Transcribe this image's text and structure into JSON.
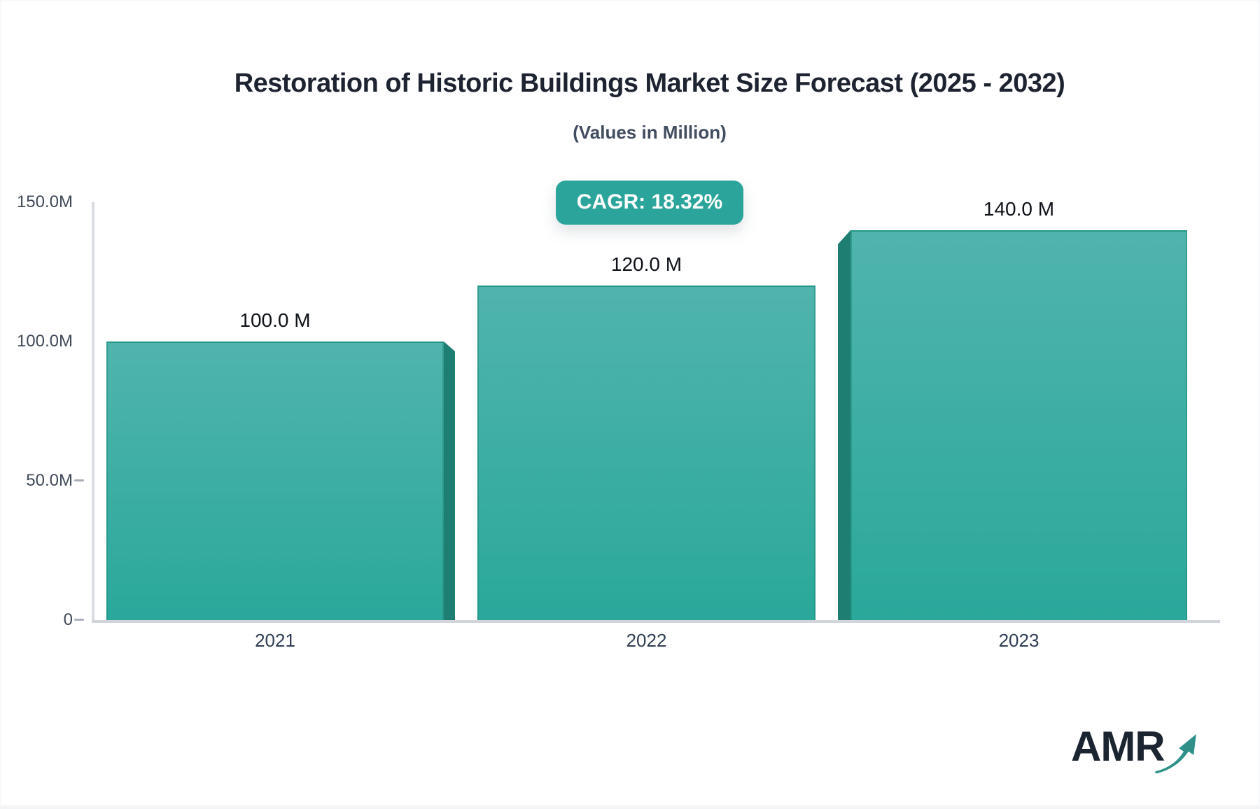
{
  "header": {
    "title": "Restoration of Historic Buildings Market Size Forecast (2025 - 2032)",
    "subtitle": "(Values in Million)"
  },
  "badge": {
    "label": "CAGR: 18.32%"
  },
  "chart_data": {
    "type": "bar",
    "title": "Restoration of Historic Buildings Market Size Forecast (2025 - 2032)",
    "subtitle": "(Values in Million)",
    "cagr_percent": 18.32,
    "categories": [
      "2021",
      "2022",
      "2023"
    ],
    "values": [
      100.0,
      120.0,
      140.0
    ],
    "value_labels": [
      "100.0 M",
      "120.0 M",
      "140.0 M"
    ],
    "unit": "Million",
    "ylim": [
      0,
      150
    ],
    "yticks": [
      {
        "value": 150,
        "label": "150.0M",
        "dash": false
      },
      {
        "value": 100,
        "label": "100.0M",
        "dash": false
      },
      {
        "value": 50,
        "label": "50.0M",
        "dash": true
      },
      {
        "value": 0,
        "label": "0",
        "dash": true
      }
    ],
    "grid": false,
    "legend": false,
    "bar_gradient_top": "#50b4ac",
    "bar_gradient_bottom": "#2aa89a",
    "bar_side_face_color": "#1f7e72",
    "badge_color": "#2ba59b"
  },
  "logo": {
    "text": "AMR",
    "icon": "growth-arrow-icon",
    "arrow_color": "#2e9089"
  }
}
